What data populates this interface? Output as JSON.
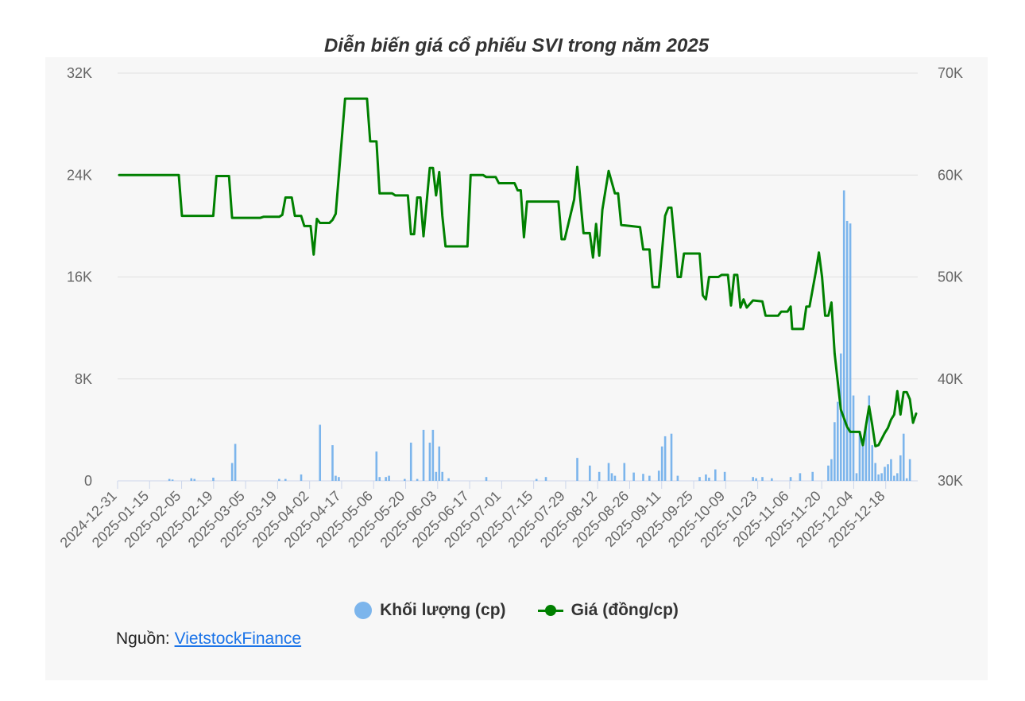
{
  "chart_data": {
    "type": "bar+line",
    "title": "Diễn biến giá cổ phiếu SVI trong năm 2025",
    "x_tick_labels": [
      "2024-12-31",
      "2025-01-15",
      "2025-02-05",
      "2025-02-19",
      "2025-03-05",
      "2025-03-19",
      "2025-04-02",
      "2025-04-17",
      "2025-05-06",
      "2025-05-20",
      "2025-06-03",
      "2025-06-17",
      "2025-07-01",
      "2025-07-15",
      "2025-07-29",
      "2025-08-12",
      "2025-08-26",
      "2025-09-11",
      "2025-09-25",
      "2025-10-09",
      "2025-10-23",
      "2025-11-06",
      "2025-11-20",
      "2025-12-04",
      "2025-12-18"
    ],
    "y_left": {
      "ticks": [
        0,
        8000,
        16000,
        24000,
        32000
      ],
      "tick_labels": [
        "0",
        "8K",
        "16K",
        "24K",
        "32K"
      ],
      "range": [
        0,
        32000
      ]
    },
    "y_right": {
      "ticks": [
        30000,
        40000,
        50000,
        60000,
        70000
      ],
      "tick_labels": [
        "30K",
        "40K",
        "50K",
        "60K",
        "70K"
      ],
      "range": [
        30000,
        70000
      ]
    },
    "grid": true,
    "legend_position": "bottom",
    "series": [
      {
        "name": "Khối lượng (cp)",
        "type": "bar",
        "axis": "left",
        "color": "#7cb5ec",
        "values": [
          [
            16,
            150
          ],
          [
            17,
            100
          ],
          [
            23,
            200
          ],
          [
            24,
            150
          ],
          [
            30,
            250
          ],
          [
            36,
            1400
          ],
          [
            37,
            2900
          ],
          [
            51,
            150
          ],
          [
            53,
            150
          ],
          [
            58,
            500
          ],
          [
            64,
            4400
          ],
          [
            68,
            2800
          ],
          [
            69,
            400
          ],
          [
            70,
            300
          ],
          [
            82,
            2300
          ],
          [
            83,
            300
          ],
          [
            85,
            300
          ],
          [
            86,
            400
          ],
          [
            91,
            150
          ],
          [
            93,
            3000
          ],
          [
            95,
            150
          ],
          [
            97,
            4000
          ],
          [
            99,
            3000
          ],
          [
            100,
            4000
          ],
          [
            101,
            700
          ],
          [
            102,
            2700
          ],
          [
            103,
            700
          ],
          [
            105,
            200
          ],
          [
            117,
            300
          ],
          [
            133,
            150
          ],
          [
            136,
            300
          ],
          [
            146,
            1800
          ],
          [
            150,
            1200
          ],
          [
            153,
            700
          ],
          [
            156,
            1400
          ],
          [
            157,
            600
          ],
          [
            158,
            400
          ],
          [
            161,
            1400
          ],
          [
            164,
            650
          ],
          [
            167,
            550
          ],
          [
            169,
            400
          ],
          [
            172,
            800
          ],
          [
            173,
            2700
          ],
          [
            174,
            3500
          ],
          [
            176,
            3700
          ],
          [
            178,
            400
          ],
          [
            185,
            300
          ],
          [
            187,
            500
          ],
          [
            188,
            250
          ],
          [
            190,
            900
          ],
          [
            193,
            700
          ],
          [
            202,
            300
          ],
          [
            203,
            200
          ],
          [
            205,
            300
          ],
          [
            208,
            200
          ],
          [
            214,
            300
          ],
          [
            217,
            600
          ],
          [
            221,
            700
          ],
          [
            226,
            1200
          ],
          [
            227,
            1700
          ],
          [
            228,
            4600
          ],
          [
            229,
            6200
          ],
          [
            230,
            10000
          ],
          [
            231,
            22800
          ],
          [
            232,
            20400
          ],
          [
            233,
            20200
          ],
          [
            234,
            6700
          ],
          [
            235,
            600
          ],
          [
            236,
            3800
          ],
          [
            237,
            3300
          ],
          [
            238,
            4300
          ],
          [
            239,
            6700
          ],
          [
            240,
            2800
          ],
          [
            241,
            1400
          ],
          [
            242,
            500
          ],
          [
            243,
            600
          ],
          [
            244,
            1100
          ],
          [
            245,
            1300
          ],
          [
            246,
            1700
          ],
          [
            247,
            400
          ],
          [
            248,
            600
          ],
          [
            249,
            2000
          ],
          [
            250,
            3700
          ],
          [
            251,
            200
          ],
          [
            252,
            1700
          ]
        ]
      },
      {
        "name": "Giá (đồng/cp)",
        "type": "line",
        "axis": "right",
        "color": "#008000",
        "values": [
          [
            0,
            60000
          ],
          [
            19,
            60000
          ],
          [
            20,
            56000
          ],
          [
            30,
            56000
          ],
          [
            31,
            59900
          ],
          [
            35,
            59900
          ],
          [
            36,
            55800
          ],
          [
            45,
            55800
          ],
          [
            46,
            55900
          ],
          [
            51,
            55900
          ],
          [
            52,
            56100
          ],
          [
            53,
            57800
          ],
          [
            55,
            57800
          ],
          [
            56,
            56000
          ],
          [
            58,
            56000
          ],
          [
            59,
            55000
          ],
          [
            61,
            55000
          ],
          [
            62,
            52200
          ],
          [
            63,
            55700
          ],
          [
            64,
            55300
          ],
          [
            67,
            55300
          ],
          [
            68,
            55600
          ],
          [
            69,
            56200
          ],
          [
            72,
            67500
          ],
          [
            79,
            67500
          ],
          [
            80,
            63300
          ],
          [
            82,
            63300
          ],
          [
            83,
            58200
          ],
          [
            87,
            58200
          ],
          [
            88,
            58000
          ],
          [
            92,
            58000
          ],
          [
            93,
            54200
          ],
          [
            94,
            54200
          ],
          [
            95,
            57800
          ],
          [
            96,
            57800
          ],
          [
            97,
            54000
          ],
          [
            99,
            60700
          ],
          [
            100,
            60700
          ],
          [
            101,
            58000
          ],
          [
            102,
            60300
          ],
          [
            103,
            56000
          ],
          [
            104,
            53000
          ],
          [
            111,
            53000
          ],
          [
            112,
            60000
          ],
          [
            116,
            60000
          ],
          [
            117,
            59800
          ],
          [
            120,
            59800
          ],
          [
            121,
            59200
          ],
          [
            126,
            59200
          ],
          [
            127,
            58500
          ],
          [
            128,
            58500
          ],
          [
            129,
            53900
          ],
          [
            130,
            57400
          ],
          [
            140,
            57400
          ],
          [
            141,
            53700
          ],
          [
            142,
            53700
          ],
          [
            145,
            57600
          ],
          [
            146,
            60800
          ],
          [
            148,
            54300
          ],
          [
            150,
            54300
          ],
          [
            151,
            51900
          ],
          [
            152,
            55200
          ],
          [
            153,
            52100
          ],
          [
            154,
            56600
          ],
          [
            156,
            60400
          ],
          [
            158,
            58200
          ],
          [
            159,
            58200
          ],
          [
            160,
            55100
          ],
          [
            163,
            55000
          ],
          [
            166,
            54900
          ],
          [
            167,
            52700
          ],
          [
            169,
            52700
          ],
          [
            170,
            49000
          ],
          [
            172,
            49000
          ],
          [
            174,
            56000
          ],
          [
            175,
            56800
          ],
          [
            176,
            56800
          ],
          [
            177,
            53500
          ],
          [
            178,
            50000
          ],
          [
            179,
            50000
          ],
          [
            180,
            52300
          ],
          [
            185,
            52300
          ],
          [
            186,
            48200
          ],
          [
            187,
            47800
          ],
          [
            188,
            50000
          ],
          [
            191,
            50000
          ],
          [
            192,
            50200
          ],
          [
            194,
            50200
          ],
          [
            195,
            47200
          ],
          [
            196,
            50200
          ],
          [
            197,
            50200
          ],
          [
            198,
            47000
          ],
          [
            199,
            47800
          ],
          [
            200,
            47000
          ],
          [
            202,
            47700
          ],
          [
            205,
            47600
          ],
          [
            206,
            46200
          ],
          [
            210,
            46200
          ],
          [
            211,
            46600
          ],
          [
            213,
            46600
          ],
          [
            214,
            47100
          ],
          [
            214.5,
            44900
          ],
          [
            218,
            44900
          ],
          [
            219,
            47100
          ],
          [
            220,
            47100
          ],
          [
            222,
            50500
          ],
          [
            223,
            52400
          ],
          [
            224,
            50000
          ],
          [
            225,
            46200
          ],
          [
            226,
            46200
          ],
          [
            227,
            47500
          ],
          [
            228,
            42500
          ],
          [
            230,
            37000
          ],
          [
            232,
            35300
          ],
          [
            233,
            34800
          ],
          [
            236,
            34800
          ],
          [
            237,
            33500
          ],
          [
            238,
            35400
          ],
          [
            239,
            37300
          ],
          [
            240,
            35500
          ],
          [
            241,
            33400
          ],
          [
            242,
            33500
          ],
          [
            244,
            34700
          ],
          [
            245,
            35200
          ],
          [
            246,
            36000
          ],
          [
            247,
            36500
          ],
          [
            248,
            38800
          ],
          [
            249,
            36500
          ],
          [
            250,
            38700
          ],
          [
            251,
            38700
          ],
          [
            252,
            38000
          ],
          [
            253,
            35700
          ],
          [
            254,
            36600
          ]
        ]
      }
    ]
  },
  "legend": {
    "volume_label": "Khối lượng (cp)",
    "price_label": "Giá (đồng/cp)"
  },
  "source": {
    "prefix": "Nguồn: ",
    "link_text": "VietstockFinance"
  }
}
